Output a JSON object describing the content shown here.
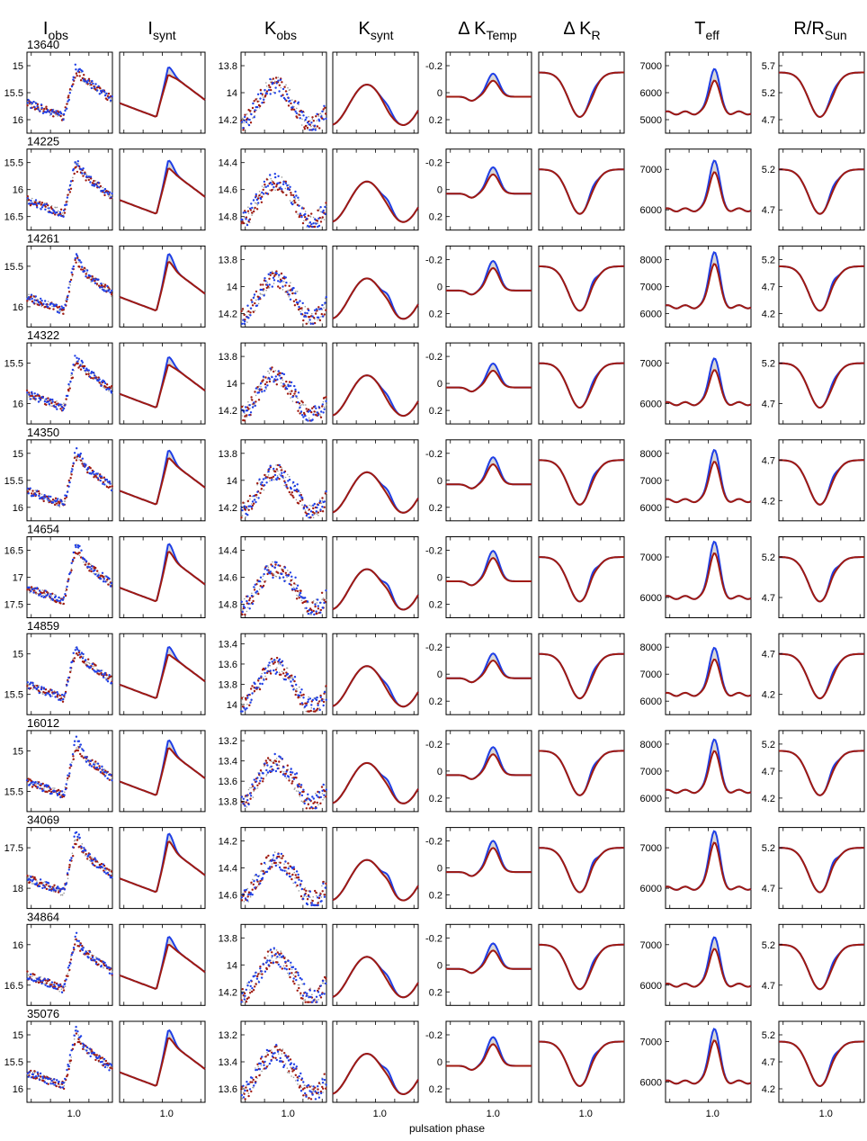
{
  "chart_data": {
    "type": "scatter",
    "xlabel": "pulsation phase",
    "x_tick_labels": [
      "1.0"
    ],
    "columns": [
      {
        "key": "Iobs",
        "main": "I",
        "sub": "obs"
      },
      {
        "key": "Isynt",
        "main": "I",
        "sub": "synt"
      },
      {
        "key": "Kobs",
        "main": "K",
        "sub": "obs"
      },
      {
        "key": "Ksynt",
        "main": "K",
        "sub": "synt"
      },
      {
        "key": "dKT",
        "main": "Δ K",
        "sub": "Temp"
      },
      {
        "key": "dKR",
        "main": "Δ K",
        "sub": "R"
      },
      {
        "key": "Teff",
        "main": "T",
        "sub": "eff"
      },
      {
        "key": "RRsun",
        "main": "R/R",
        "sub": "Sun"
      }
    ],
    "stars": [
      {
        "id": "13640",
        "I": {
          "ticks": [
            "15",
            "15.5",
            "16"
          ]
        },
        "K": {
          "ticks": [
            "13.8",
            "14",
            "14.2"
          ]
        },
        "T": {
          "ticks": [
            "5000",
            "6000",
            "7000"
          ]
        },
        "R": {
          "ticks": [
            "4.7",
            "5.2",
            "5.7"
          ]
        }
      },
      {
        "id": "14225",
        "I": {
          "ticks": [
            "15.5",
            "16",
            "16.5"
          ]
        },
        "K": {
          "ticks": [
            "14.4",
            "14.6",
            "14.8"
          ]
        },
        "T": {
          "ticks": [
            "6000",
            "7000"
          ]
        },
        "R": {
          "ticks": [
            "4.7",
            "5.2"
          ]
        }
      },
      {
        "id": "14261",
        "I": {
          "ticks": [
            "15.5",
            "16"
          ]
        },
        "K": {
          "ticks": [
            "13.8",
            "14",
            "14.2"
          ]
        },
        "T": {
          "ticks": [
            "6000",
            "7000",
            "8000"
          ]
        },
        "R": {
          "ticks": [
            "4.2",
            "4.7",
            "5.2"
          ]
        }
      },
      {
        "id": "14322",
        "I": {
          "ticks": [
            "15.5",
            "16"
          ]
        },
        "K": {
          "ticks": [
            "13.8",
            "14",
            "14.2"
          ]
        },
        "T": {
          "ticks": [
            "6000",
            "7000"
          ]
        },
        "R": {
          "ticks": [
            "4.7",
            "5.2"
          ]
        }
      },
      {
        "id": "14350",
        "I": {
          "ticks": [
            "15",
            "15.5",
            "16"
          ]
        },
        "K": {
          "ticks": [
            "13.8",
            "14",
            "14.2"
          ]
        },
        "T": {
          "ticks": [
            "6000",
            "7000",
            "8000"
          ]
        },
        "R": {
          "ticks": [
            "4.2",
            "4.7"
          ]
        }
      },
      {
        "id": "14654",
        "I": {
          "ticks": [
            "16.5",
            "17",
            "17.5"
          ]
        },
        "K": {
          "ticks": [
            "14.4",
            "14.6",
            "14.8"
          ]
        },
        "T": {
          "ticks": [
            "6000",
            "7000"
          ]
        },
        "R": {
          "ticks": [
            "4.7",
            "5.2"
          ]
        }
      },
      {
        "id": "14859",
        "I": {
          "ticks": [
            "15",
            "15.5"
          ]
        },
        "K": {
          "ticks": [
            "13.4",
            "13.6",
            "13.8",
            "14"
          ]
        },
        "T": {
          "ticks": [
            "6000",
            "7000",
            "8000"
          ]
        },
        "R": {
          "ticks": [
            "4.2",
            "4.7"
          ]
        }
      },
      {
        "id": "16012",
        "I": {
          "ticks": [
            "15",
            "15.5"
          ]
        },
        "K": {
          "ticks": [
            "13.2",
            "13.4",
            "13.6",
            "13.8"
          ]
        },
        "T": {
          "ticks": [
            "6000",
            "7000",
            "8000"
          ]
        },
        "R": {
          "ticks": [
            "4.2",
            "4.7",
            "5.2"
          ]
        }
      },
      {
        "id": "34069",
        "I": {
          "ticks": [
            "17.5",
            "18"
          ]
        },
        "K": {
          "ticks": [
            "14.2",
            "14.4",
            "14.6"
          ]
        },
        "T": {
          "ticks": [
            "6000",
            "7000"
          ]
        },
        "R": {
          "ticks": [
            "4.7",
            "5.2"
          ]
        }
      },
      {
        "id": "34864",
        "I": {
          "ticks": [
            "16",
            "16.5"
          ]
        },
        "K": {
          "ticks": [
            "13.8",
            "14",
            "14.2"
          ]
        },
        "T": {
          "ticks": [
            "6000",
            "7000"
          ]
        },
        "R": {
          "ticks": [
            "4.7",
            "5.2"
          ]
        }
      },
      {
        "id": "35076",
        "I": {
          "ticks": [
            "15",
            "15.5",
            "16"
          ]
        },
        "K": {
          "ticks": [
            "13.2",
            "13.4",
            "13.6"
          ]
        },
        "T": {
          "ticks": [
            "6000",
            "7000"
          ]
        },
        "R": {
          "ticks": [
            "4.2",
            "4.7",
            "5.2"
          ]
        }
      }
    ],
    "delta_ticks": [
      "-0.2",
      "0",
      "0.2"
    ],
    "colors": {
      "blue": "#1f3fe6",
      "red": "#a01a10",
      "grey": "#9a9a9a",
      "frame": "#000000"
    }
  }
}
